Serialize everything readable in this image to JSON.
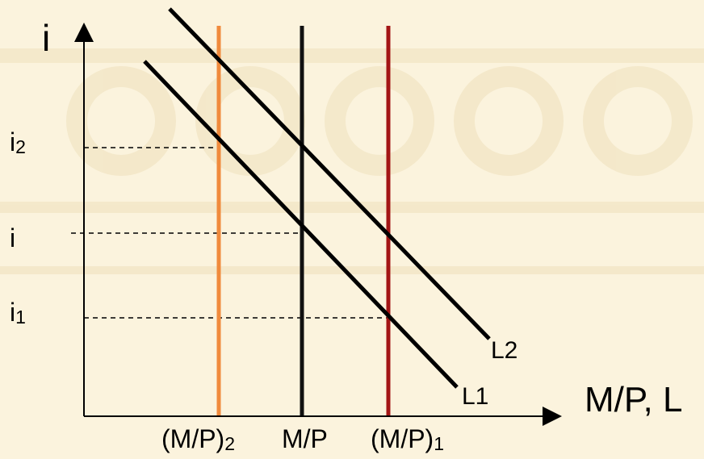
{
  "diagram": {
    "y_axis_title": "i",
    "x_axis_title": "M/P, L",
    "y_labels": {
      "i2": {
        "base": "i",
        "sub": "2"
      },
      "i": {
        "base": "i",
        "sub": ""
      },
      "i1": {
        "base": "i",
        "sub": "1"
      }
    },
    "x_labels": {
      "mp2": {
        "base": "(M/P)",
        "sub": "2"
      },
      "mp": {
        "base": "M/P",
        "sub": ""
      },
      "mp1": {
        "base": "(M/P)",
        "sub": "1"
      }
    },
    "curves": {
      "L2": "L2",
      "L1": "L1"
    },
    "colors": {
      "money_supply_2": "#f08a3c",
      "money_supply": "#111111",
      "money_supply_1": "#a31515",
      "demand_curves": "#000000",
      "background": "#fbf3dd"
    }
  }
}
